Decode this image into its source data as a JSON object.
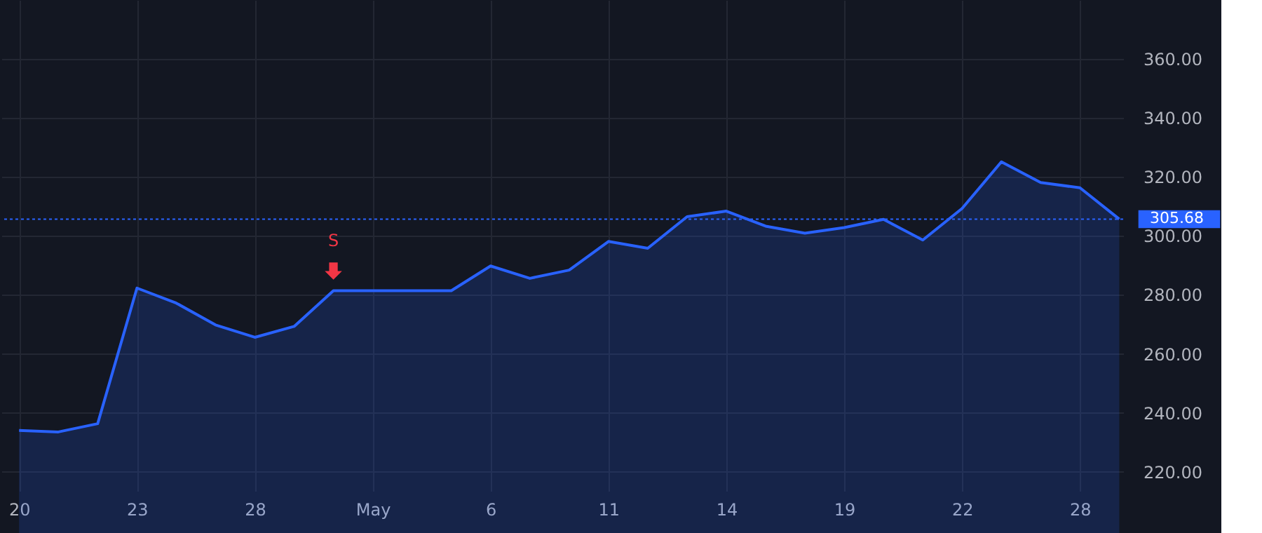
{
  "chart_data": {
    "type": "area",
    "categories": [
      "20",
      null,
      null,
      "23",
      null,
      null,
      "28",
      null,
      null,
      "May",
      null,
      null,
      "6",
      null,
      null,
      "11",
      null,
      null,
      "14",
      null,
      null,
      "19",
      null,
      null,
      "22",
      null,
      null,
      "28",
      null
    ],
    "series": [
      {
        "color": "#2962ff",
        "values": [
          234,
          233.5,
          236.3,
          282.3,
          277.2,
          269.8,
          265.6,
          269.3,
          281.4,
          281.4,
          281.4,
          281.4,
          289.8,
          285.6,
          288.4,
          298.1,
          295.8,
          306.5,
          308.4,
          303.3,
          300.9,
          302.8,
          305.6,
          298.6,
          309.3,
          325.1,
          318.1,
          316.3,
          305.7
        ]
      }
    ],
    "ylim": [
      213.5,
      380
    ],
    "yticks": [
      {
        "value": 220,
        "label": "220.00"
      },
      {
        "value": 240,
        "label": "240.00"
      },
      {
        "value": 260,
        "label": "260.00"
      },
      {
        "value": 280,
        "label": "280.00"
      },
      {
        "value": 300,
        "label": "300.00"
      },
      {
        "value": 320,
        "label": "320.00"
      },
      {
        "value": 340,
        "label": "340.00"
      },
      {
        "value": 360,
        "label": "360.00"
      }
    ],
    "ref_lines": [
      {
        "axis": "y",
        "value": 305.68,
        "label": "305.68",
        "color": "#2962ff",
        "line_style": "dotted"
      }
    ],
    "annotations": [
      {
        "text": "S",
        "y": 281.4
      }
    ],
    "grid": true
  }
}
